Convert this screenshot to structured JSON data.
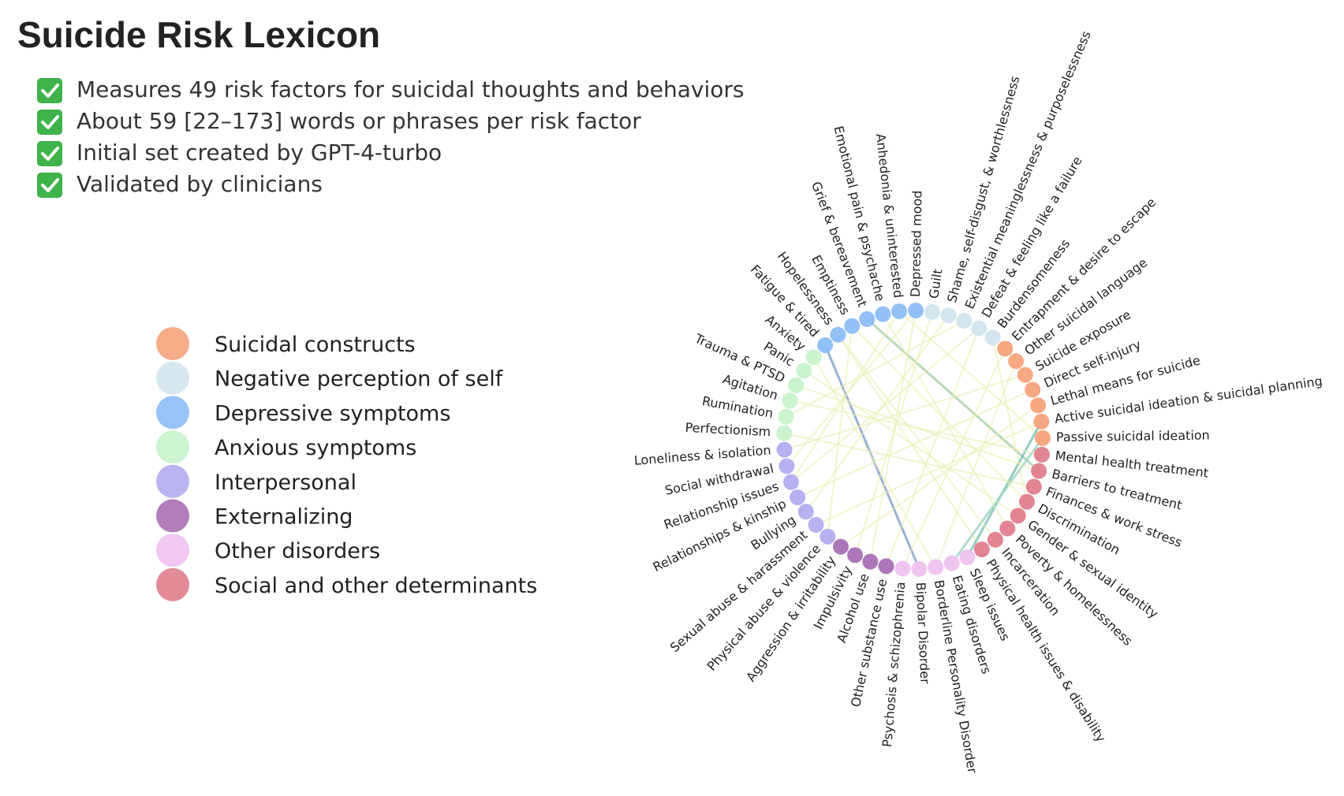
{
  "title": "Suicide Risk Lexicon",
  "bullets": [
    "Measures 49 risk factors for suicidal thoughts and behaviors",
    "About 59 [22–173] words or phrases per risk factor",
    "Initial set created by GPT-4-turbo",
    "Validated by clinicians"
  ],
  "legend": [
    {
      "name": "Suicidal constructs",
      "color": "#f5a37c",
      "nodes": [
        "Entrapment & desire to escape",
        "Other suicidal language",
        "Suicide exposure",
        "Direct self-injury",
        "Lethal means for suicide",
        "Active suicidal ideation & suicidal planning",
        "Passive suicidal ideation"
      ]
    },
    {
      "name": "Negative perception of self",
      "color": "#d3e4ee",
      "nodes": [
        "Guilt",
        "Shame, self-disgust, & worthlessness",
        "Existential meaninglessness & purposelessness",
        "Defeat & feeling like a failure",
        "Burdensomeness"
      ]
    },
    {
      "name": "Depressive symptoms",
      "color": "#8dbdf5",
      "nodes": [
        "Fatigue & tired",
        "Hopelessness",
        "Emptiness",
        "Grief & bereavement",
        "Emotional pain & psychache",
        "Anhedonia & uninterested",
        "Depressed mood"
      ]
    },
    {
      "name": "Anxious symptoms",
      "color": "#c8f2cb",
      "nodes": [
        "Perfectionism",
        "Rumination",
        "Agitation",
        "Trauma & PTSD",
        "Panic",
        "Anxiety"
      ]
    },
    {
      "name": "Interpersonal",
      "color": "#b2adf0",
      "nodes": [
        "Physical abuse & violence",
        "Sexual abuse & harassment",
        "Bullying",
        "Relationships & kinship",
        "Relationship issues",
        "Social withdrawal",
        "Loneliness & isolation"
      ]
    },
    {
      "name": "Externalizing",
      "color": "#a870b4",
      "nodes": [
        "Other substance use",
        "Alcohol use",
        "Impulsivity",
        "Aggression & irritability"
      ]
    },
    {
      "name": "Other disorders",
      "color": "#eec2ef",
      "nodes": [
        "Sleep issues",
        "Eating disorders",
        "Borderline Personality Disorder",
        "Bipolar Disorder",
        "Psychosis & schizophrenia"
      ]
    },
    {
      "name": "Social and other determinants",
      "color": "#e07d8c",
      "nodes": [
        "Mental health treatment",
        "Barriers to treatment",
        "Finances & work stress",
        "Discrimination",
        "Gender & sexual identity",
        "Poverty & homelessness",
        "Incarceration",
        "Physical health issues & disability"
      ]
    }
  ]
}
